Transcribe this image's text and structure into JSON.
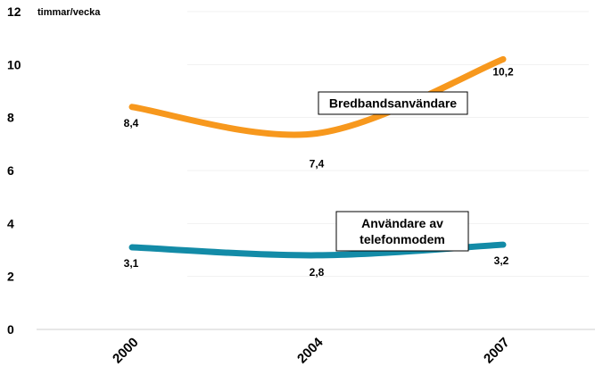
{
  "chart_data": {
    "type": "line",
    "title": "",
    "xlabel": "",
    "ylabel": "timmar/vecka",
    "categories": [
      "2000",
      "2004",
      "2007"
    ],
    "y_ticks": [
      0,
      2,
      4,
      6,
      8,
      10,
      12
    ],
    "ylim": [
      0,
      12
    ],
    "grid": "horizontal-light",
    "series": [
      {
        "name": "Bredbandsanvändare",
        "values": [
          8.4,
          7.4,
          10.2
        ],
        "labels": [
          "8,4",
          "7,4",
          "10,2"
        ],
        "color": "#f7981d"
      },
      {
        "name": "Användare av telefonmodem",
        "values": [
          3.1,
          2.8,
          3.2
        ],
        "labels": [
          "3,1",
          "2,8",
          "3,2"
        ],
        "color": "#138ba7"
      }
    ],
    "annotations": [
      {
        "lines": [
          "Bredbandsanvändare"
        ],
        "series": "Bredbandsanvändare"
      },
      {
        "lines": [
          "Användare av",
          "telefonmodem"
        ],
        "series": "Användare av telefonmodem"
      }
    ]
  }
}
